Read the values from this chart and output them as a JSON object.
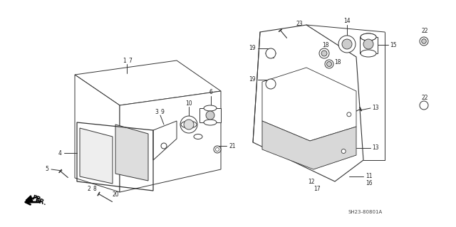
{
  "bg": "#ffffff",
  "lc": "#333333",
  "tc": "#222222",
  "diagram_code": "SH23-80801A",
  "figsize": [
    6.4,
    3.19
  ],
  "dpi": 100
}
